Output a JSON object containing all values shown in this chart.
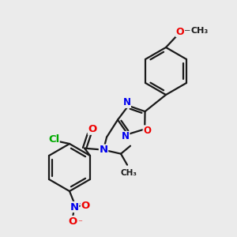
{
  "bg_color": "#ebebeb",
  "bond_color": "#1a1a1a",
  "bond_width": 1.6,
  "atom_colors": {
    "N": "#0000ee",
    "O": "#ee0000",
    "Cl": "#00aa00",
    "C": "#1a1a1a"
  }
}
